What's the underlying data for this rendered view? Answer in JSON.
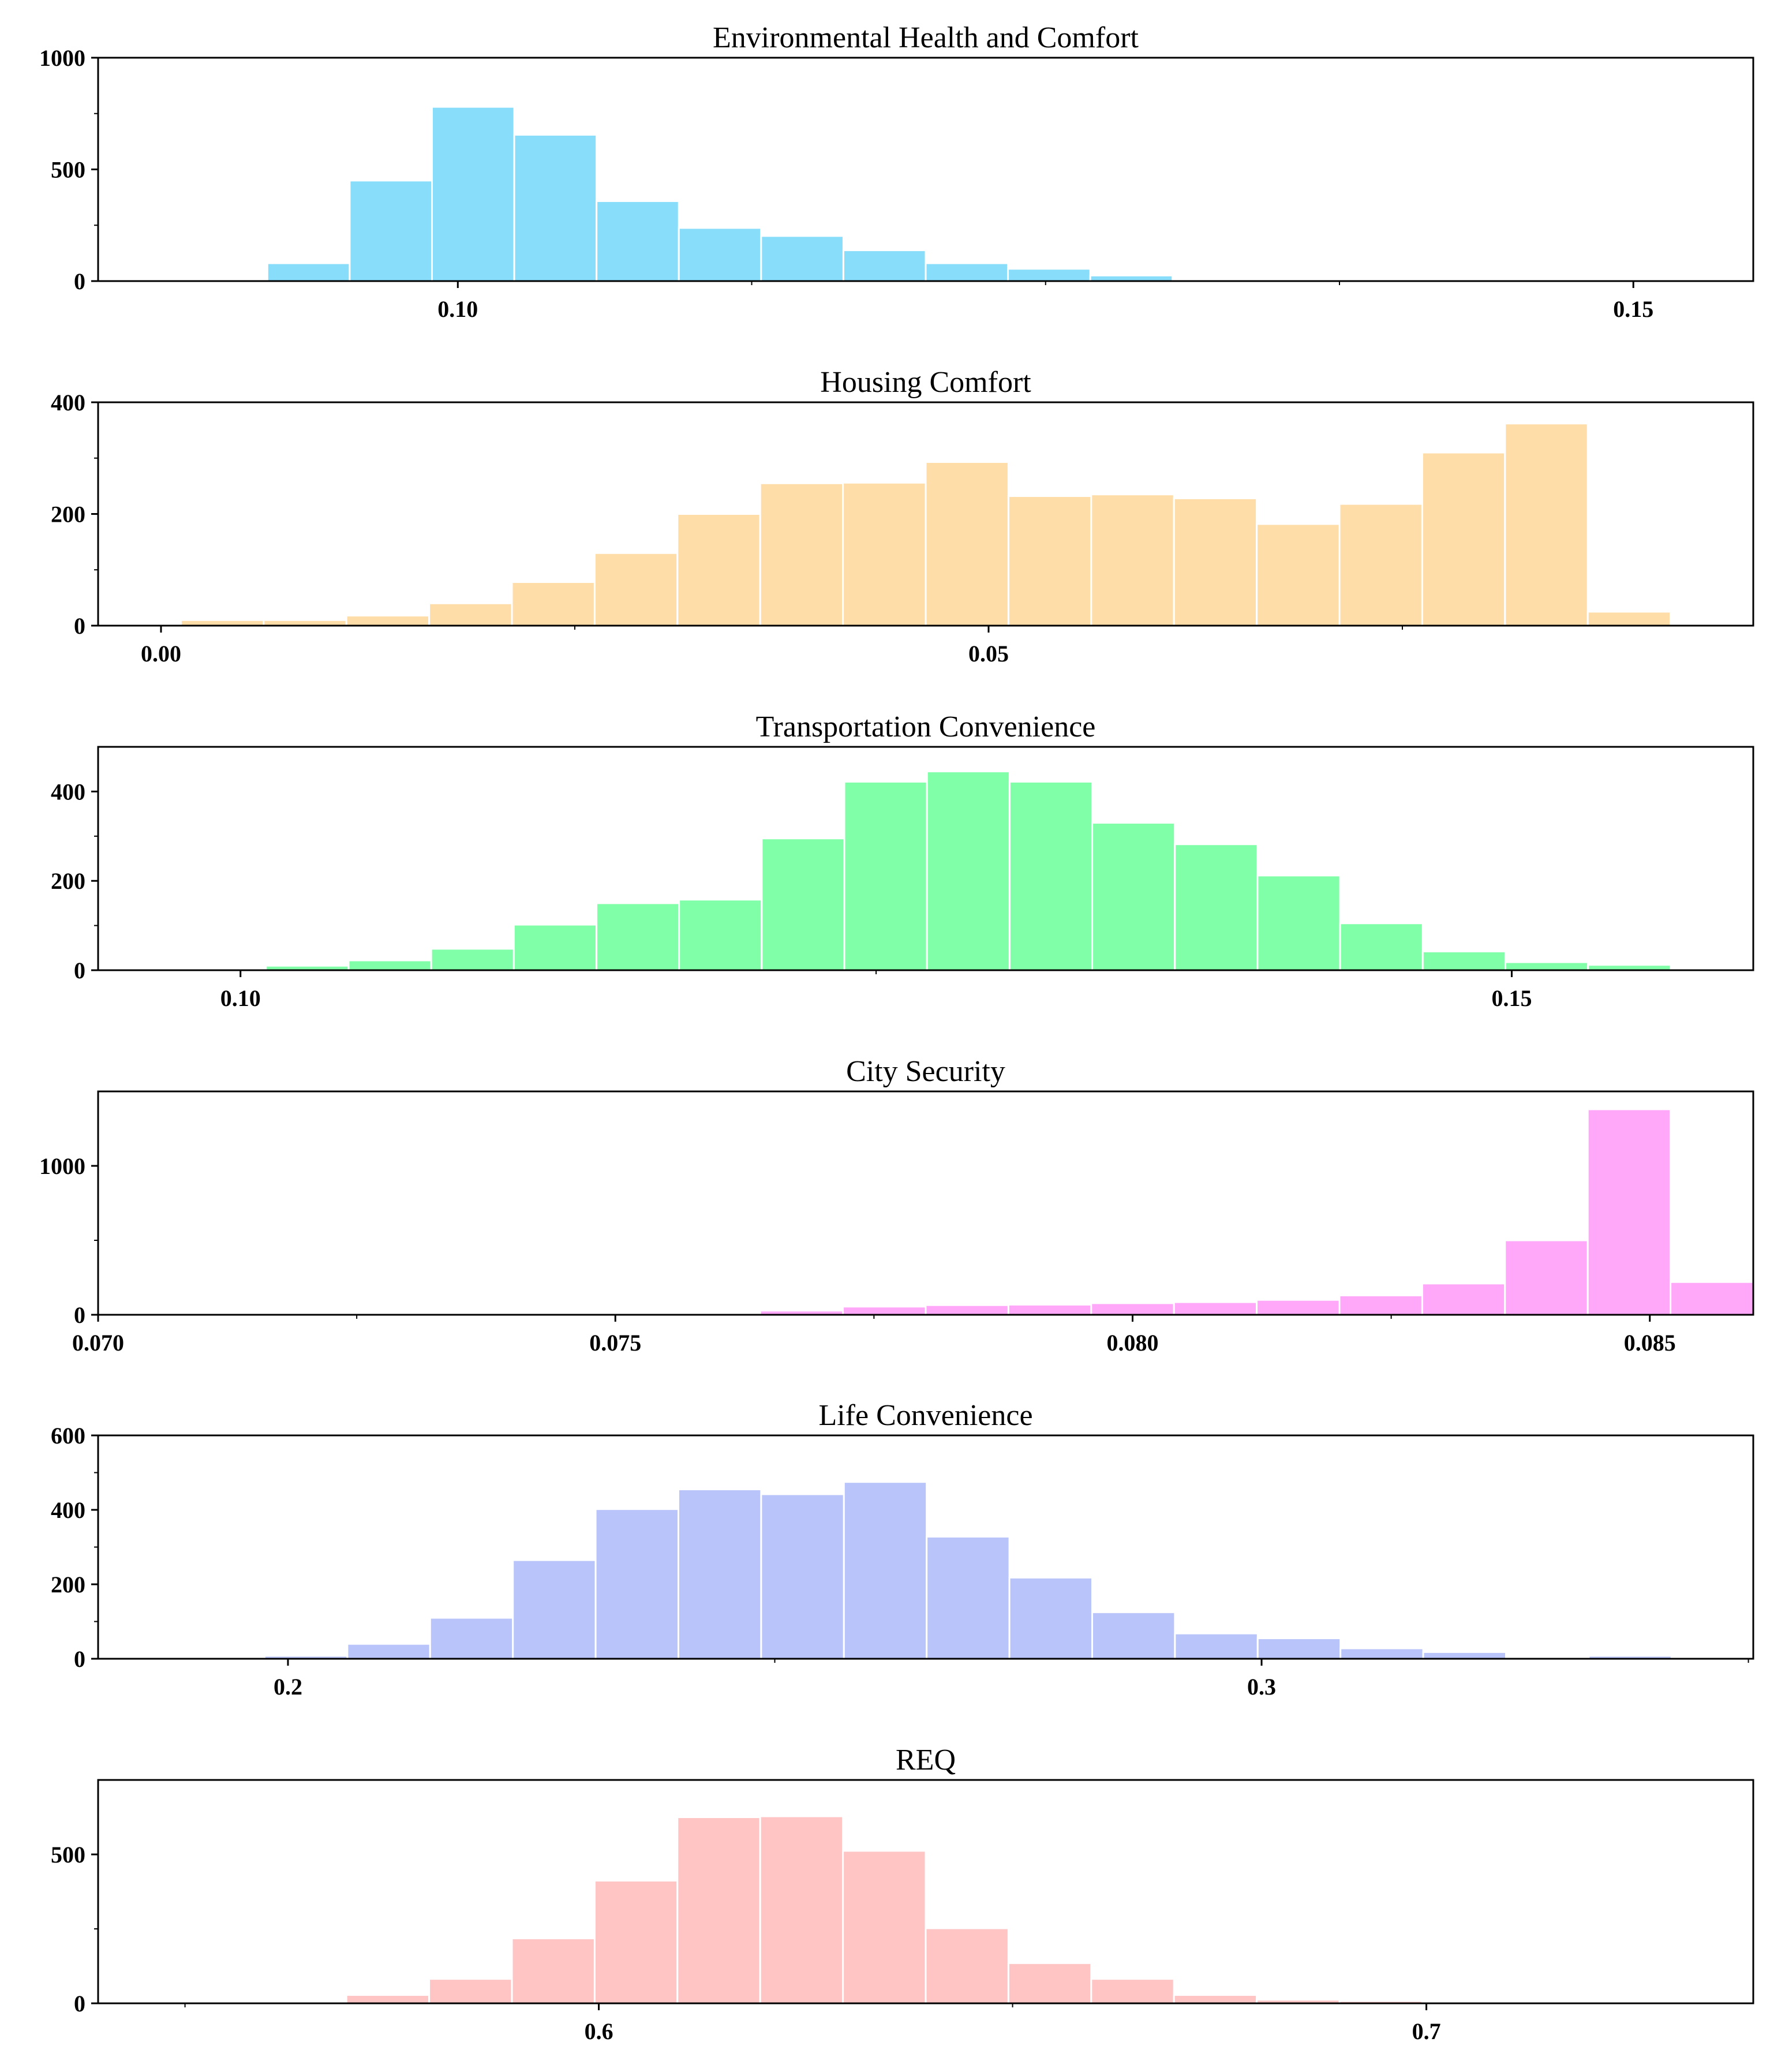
{
  "chart_data": [
    {
      "type": "bar",
      "subtype": "histogram",
      "title": "Environmental Health and Comfort",
      "color": "#87DDFA",
      "xlim": [
        0.0847,
        0.1551
      ],
      "ylim": [
        0,
        1000
      ],
      "bin_start": 0.0919,
      "bin_width": 0.0035,
      "values": [
        80,
        450,
        780,
        655,
        358,
        238,
        202,
        138,
        80,
        55,
        25,
        0,
        0,
        0,
        0,
        0,
        0,
        0,
        0,
        0
      ],
      "x_ticks": [
        0.1,
        0.15
      ],
      "x_tick_labels": [
        "0.10",
        "0.15"
      ],
      "x_minor_ticks": [
        0.1125,
        0.125,
        0.1375
      ],
      "y_ticks": [
        0,
        500,
        1000
      ],
      "y_tick_labels": [
        "0",
        "500",
        "1000"
      ],
      "y_minor_ticks": [
        250,
        750
      ]
    },
    {
      "type": "bar",
      "subtype": "histogram",
      "title": "Housing Comfort",
      "color": "#FFDDA8",
      "xlim": [
        -0.0038,
        0.0962
      ],
      "ylim": [
        0,
        400
      ],
      "bin_start": 0.0012,
      "bin_width": 0.005,
      "values": [
        10,
        10,
        18,
        40,
        78,
        130,
        200,
        255,
        256,
        293,
        232,
        235,
        228,
        182,
        218,
        310,
        362,
        25
      ],
      "x_ticks": [
        0.0,
        0.05
      ],
      "x_tick_labels": [
        "0.00",
        "0.05"
      ],
      "x_minor_ticks": [
        0.025,
        0.075
      ],
      "y_ticks": [
        0,
        200,
        400
      ],
      "y_tick_labels": [
        "0",
        "200",
        "400"
      ],
      "y_minor_ticks": [
        100,
        300
      ]
    },
    {
      "type": "bar",
      "subtype": "histogram",
      "title": "Transportation Convenience",
      "color": "#80FFA8",
      "xlim": [
        0.0944,
        0.1595
      ],
      "ylim": [
        0,
        500
      ],
      "bin_start": 0.101,
      "bin_width": 0.00325,
      "values": [
        10,
        22,
        48,
        102,
        150,
        158,
        295,
        422,
        445,
        422,
        330,
        282,
        212,
        105,
        42,
        18,
        12
      ],
      "x_ticks": [
        0.1,
        0.15
      ],
      "x_tick_labels": [
        "0.10",
        "0.15"
      ],
      "x_minor_ticks": [
        0.125
      ],
      "y_ticks": [
        0,
        200,
        400
      ],
      "y_tick_labels": [
        "0",
        "200",
        "400"
      ],
      "y_minor_ticks": [
        100,
        300
      ]
    },
    {
      "type": "bar",
      "subtype": "histogram",
      "title": "City Security",
      "color": "#FFA8FA",
      "xlim": [
        0.07,
        0.086
      ],
      "ylim": [
        0,
        1500
      ],
      "bin_start": 0.0716,
      "bin_width": 0.0008,
      "values": [
        2,
        2,
        5,
        5,
        5,
        8,
        28,
        55,
        65,
        68,
        78,
        85,
        100,
        130,
        210,
        500,
        1380,
        220
      ],
      "x_ticks": [
        0.07,
        0.075,
        0.08,
        0.085
      ],
      "x_tick_labels": [
        "0.070",
        "0.075",
        "0.080",
        "0.085"
      ],
      "x_minor_ticks": [
        0.0725,
        0.0775,
        0.0825
      ],
      "y_ticks": [
        0,
        1000
      ],
      "y_tick_labels": [
        "0",
        "1000"
      ],
      "y_minor_ticks": [
        500
      ]
    },
    {
      "type": "bar",
      "subtype": "histogram",
      "title": "Life Convenience",
      "color": "#B8C4FA",
      "xlim": [
        0.1805,
        0.3505
      ],
      "ylim": [
        0,
        600
      ],
      "bin_start": 0.1976,
      "bin_width": 0.0085,
      "values": [
        8,
        40,
        110,
        265,
        402,
        455,
        442,
        475,
        328,
        218,
        125,
        68,
        55,
        28,
        18,
        0,
        8
      ],
      "x_ticks": [
        0.2,
        0.3
      ],
      "x_tick_labels": [
        "0.2",
        "0.3"
      ],
      "x_minor_ticks": [
        0.25,
        0.35
      ],
      "y_ticks": [
        0,
        200,
        400,
        600
      ],
      "y_tick_labels": [
        "0",
        "200",
        "400",
        "600"
      ],
      "y_minor_ticks": [
        100,
        300,
        500
      ]
    },
    {
      "type": "bar",
      "subtype": "histogram",
      "title": "REQ",
      "color": "#FFC4C4",
      "xlim": [
        0.5395,
        0.7395
      ],
      "ylim": [
        0,
        750
      ],
      "bin_start": 0.5595,
      "bin_width": 0.01,
      "values": [
        5,
        28,
        82,
        218,
        412,
        625,
        628,
        512,
        252,
        135,
        82,
        28,
        12,
        8,
        0,
        0,
        0,
        0
      ],
      "x_ticks": [
        0.6,
        0.7
      ],
      "x_tick_labels": [
        "0.6",
        "0.7"
      ],
      "x_minor_ticks": [
        0.55,
        0.65
      ],
      "y_ticks": [
        0,
        500
      ],
      "y_tick_labels": [
        "0",
        "500"
      ],
      "y_minor_ticks": [
        250
      ]
    }
  ]
}
